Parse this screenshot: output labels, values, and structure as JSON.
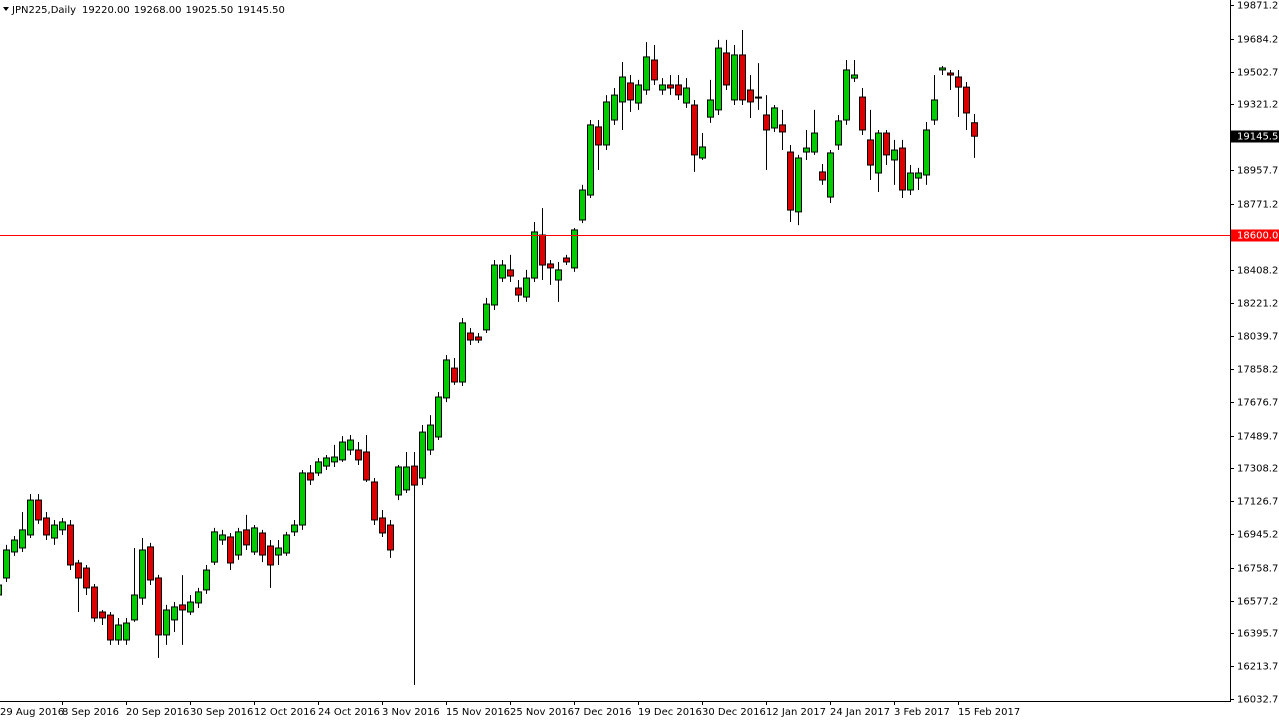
{
  "chart_data": {
    "type": "candlestick",
    "title": "JPN225,Daily",
    "last_labels": [
      "19220.00",
      "19268.00",
      "19025.50",
      "19145.50"
    ],
    "up_color": "#00cc00",
    "down_color": "#dd0000",
    "categories": [
      "29 Aug 2016",
      null,
      null,
      null,
      null,
      null,
      null,
      null,
      "8 Sep 2016",
      null,
      null,
      null,
      null,
      null,
      null,
      null,
      "20 Sep 2016",
      null,
      null,
      null,
      null,
      null,
      null,
      null,
      "30 Sep 2016",
      null,
      null,
      null,
      null,
      null,
      null,
      null,
      "12 Oct 2016",
      null,
      null,
      null,
      null,
      null,
      null,
      null,
      "24 Oct 2016",
      null,
      null,
      null,
      null,
      null,
      null,
      null,
      "3 Nov 2016",
      null,
      null,
      null,
      null,
      null,
      null,
      null,
      "15 Nov 2016",
      null,
      null,
      null,
      null,
      null,
      null,
      null,
      "25 Nov 2016",
      null,
      null,
      null,
      null,
      null,
      null,
      null,
      "7 Dec 2016",
      null,
      null,
      null,
      null,
      null,
      null,
      null,
      "19 Dec 2016",
      null,
      null,
      null,
      null,
      null,
      null,
      null,
      "30 Dec 2016",
      null,
      null,
      null,
      null,
      null,
      null,
      null,
      "12 Jan 2017",
      null,
      null,
      null,
      null,
      null,
      null,
      null,
      "24 Jan 2017",
      null,
      null,
      null,
      null,
      null,
      null,
      null,
      "3 Feb 2017",
      null,
      null,
      null,
      null,
      null,
      null,
      null,
      "15 Feb 2017",
      null,
      null
    ],
    "open": [
      16608,
      16702,
      16846,
      16868,
      16940,
      17133,
      17034,
      16923,
      16968,
      16995,
      16785,
      16757,
      16652,
      16514,
      16497,
      16359,
      16359,
      16470,
      16591,
      16874,
      16702,
      16387,
      16470,
      16553,
      16514,
      16564,
      16636,
      16790,
      16912,
      16929,
      16829,
      16968,
      16846,
      16951,
      16879,
      16829,
      16840,
      16957,
      16995,
      17283,
      17283,
      17321,
      17344,
      17355,
      17410,
      17410,
      17399,
      17233,
      17034,
      16995,
      17161,
      17189,
      17321,
      17255,
      17410,
      17482,
      17698,
      17863,
      17786,
      18057,
      18035,
      18074,
      18212,
      18361,
      18406,
      18306,
      18256,
      18361,
      18599,
      18439,
      18350,
      18472,
      18417,
      18682,
      18820,
      19197,
      19097,
      19235,
      19335,
      19440,
      19329,
      19401,
      19567,
      19401,
      19429,
      19429,
      19329,
      19318,
      19025,
      19251,
      19291,
      19606,
      19346,
      19595,
      19401,
      19362,
      19263,
      19191,
      19208,
      19058,
      18727,
      19058,
      19058,
      18948,
      18809,
      19097,
      19235,
      19467,
      19362,
      19125,
      18942,
      19163,
      19014,
      19080,
      18848,
      18914,
      18931,
      19235,
      19512,
      19495,
      19473,
      19417,
      19220
    ],
    "high": [
      16680,
      16885,
      16934,
      17067,
      17166,
      17166,
      17067,
      17023,
      17034,
      17023,
      16802,
      16774,
      16669,
      16525,
      16514,
      16481,
      16481,
      16868,
      16923,
      16896,
      16719,
      16553,
      16569,
      16718,
      16608,
      16647,
      16774,
      16979,
      16968,
      16951,
      16979,
      17051,
      16995,
      16968,
      16912,
      16912,
      16957,
      17023,
      17299,
      17327,
      17366,
      17382,
      17438,
      17487,
      17493,
      17454,
      17493,
      17255,
      17078,
      17023,
      17327,
      17399,
      17399,
      17548,
      17603,
      17731,
      17935,
      17919,
      18140,
      18085,
      18057,
      18251,
      18461,
      18461,
      18489,
      18350,
      18406,
      18671,
      18748,
      18461,
      18450,
      18489,
      18638,
      18876,
      19235,
      19235,
      19373,
      19412,
      19556,
      19484,
      19457,
      19666,
      19650,
      19467,
      19484,
      19484,
      19467,
      19346,
      19163,
      19457,
      19678,
      19678,
      19650,
      19733,
      19484,
      19550,
      19373,
      19318,
      19291,
      19097,
      19042,
      19180,
      19291,
      18992,
      19069,
      19263,
      19567,
      19567,
      19412,
      19291,
      19180,
      19180,
      19125,
      19125,
      18986,
      18970,
      19224,
      19484,
      19534,
      19512,
      19512,
      19445,
      19268
    ],
    "low": [
      16580,
      16680,
      16824,
      16846,
      16923,
      17001,
      16912,
      16885,
      16940,
      16746,
      16514,
      16608,
      16459,
      16442,
      16332,
      16332,
      16332,
      16459,
      16553,
      16663,
      16260,
      16332,
      16403,
      16332,
      16497,
      16536,
      16614,
      16774,
      16885,
      16746,
      16802,
      16857,
      16829,
      16790,
      16647,
      16774,
      16824,
      16934,
      16968,
      17216,
      17266,
      17299,
      17316,
      17344,
      17382,
      17327,
      17233,
      16995,
      16929,
      16813,
      17133,
      17172,
      16110,
      17216,
      17382,
      17465,
      17675,
      17770,
      17764,
      17991,
      18002,
      18057,
      18184,
      18339,
      18339,
      18229,
      18229,
      18339,
      18350,
      18323,
      18229,
      18433,
      18395,
      18665,
      18804,
      18959,
      19069,
      19208,
      19180,
      19280,
      19291,
      19374,
      19429,
      19374,
      19374,
      19346,
      19302,
      18948,
      19014,
      19219,
      19263,
      19401,
      19318,
      19318,
      19246,
      19291,
      18959,
      19169,
      19069,
      18671,
      18654,
      19014,
      19042,
      18876,
      18776,
      19069,
      19208,
      19445,
      19152,
      18903,
      18837,
      18986,
      18876,
      18804,
      18820,
      18848,
      18876,
      19208,
      19484,
      19401,
      19252,
      19180,
      19025.5
    ],
    "close": [
      16663,
      16857,
      16912,
      16968,
      17133,
      17023,
      16940,
      16995,
      17012,
      16774,
      16702,
      16647,
      16481,
      16481,
      16359,
      16442,
      16453,
      16608,
      16857,
      16691,
      16387,
      16525,
      16542,
      16525,
      16569,
      16625,
      16746,
      16957,
      16940,
      16785,
      16957,
      16885,
      16979,
      16829,
      16774,
      16868,
      16940,
      16995,
      17283,
      17244,
      17344,
      17366,
      17371,
      17454,
      17465,
      17355,
      17244,
      17023,
      16951,
      16857,
      17316,
      17316,
      17216,
      17509,
      17548,
      17703,
      17908,
      17786,
      18113,
      18018,
      18018,
      18217,
      18433,
      18433,
      18372,
      18267,
      18361,
      18616,
      18433,
      18417,
      18406,
      18450,
      18627,
      18848,
      19208,
      19097,
      19335,
      19373,
      19473,
      19346,
      19429,
      19584,
      19457,
      19429,
      19412,
      19374,
      19412,
      19042,
      19086,
      19346,
      19633,
      19429,
      19595,
      19346,
      19335,
      19357,
      19180,
      19302,
      19169,
      18737,
      19025,
      19080,
      19163,
      18903,
      19053,
      19230,
      19512,
      19484,
      19180,
      18986,
      19163,
      19042,
      19069,
      18848,
      18942,
      18942,
      19180,
      19346,
      19523,
      19484,
      19417,
      19274,
      19145.5
    ],
    "ylim": [
      16032.7,
      19871.2
    ],
    "yticks": [
      {
        "value": 19871.2,
        "label": "19871.20"
      },
      {
        "value": 19684.2,
        "label": "19684.20"
      },
      {
        "value": 19502.7,
        "label": "19502.70"
      },
      {
        "value": 19321.2,
        "label": "19321.20"
      },
      {
        "value": 18957.7,
        "label": "18957.70"
      },
      {
        "value": 18771.2,
        "label": "18771.20"
      },
      {
        "value": 18408.2,
        "label": "18408.20"
      },
      {
        "value": 18221.2,
        "label": "18221.20"
      },
      {
        "value": 18039.7,
        "label": "18039.70"
      },
      {
        "value": 17858.2,
        "label": "17858.20"
      },
      {
        "value": 17676.7,
        "label": "17676.70"
      },
      {
        "value": 17489.7,
        "label": "17489.70"
      },
      {
        "value": 17308.2,
        "label": "17308.20"
      },
      {
        "value": 17126.7,
        "label": "17126.70"
      },
      {
        "value": 16945.2,
        "label": "16945.20"
      },
      {
        "value": 16758.7,
        "label": "16758.70"
      },
      {
        "value": 16577.2,
        "label": "16577.20"
      },
      {
        "value": 16395.7,
        "label": "16395.70"
      },
      {
        "value": 16213.7,
        "label": "16213.70"
      },
      {
        "value": 16032.7,
        "label": "16032.70"
      }
    ],
    "hline": {
      "value": 18600,
      "label": "18600.00",
      "color": "#ff0000"
    },
    "last_price": {
      "value": 19145.5,
      "label": "19145.50"
    }
  }
}
